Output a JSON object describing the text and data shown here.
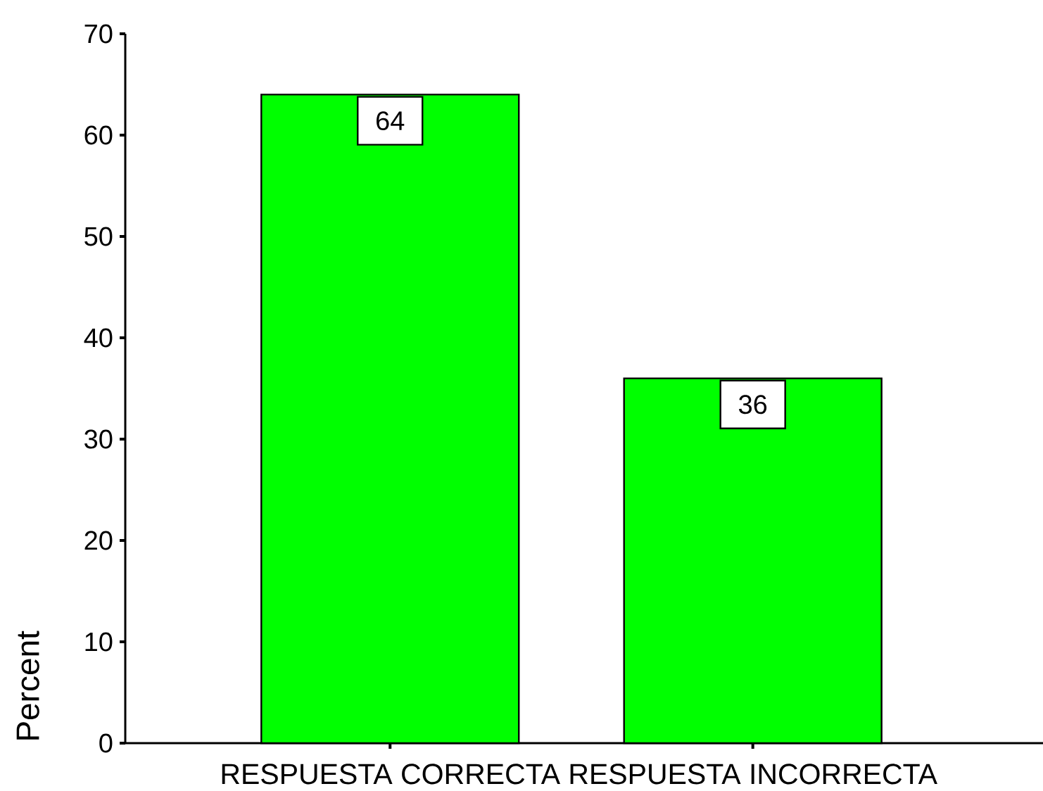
{
  "chart_data": {
    "type": "bar",
    "categories": [
      "RESPUESTA CORRECTA",
      "RESPUESTA INCORRECTA"
    ],
    "values": [
      64,
      36
    ],
    "color": "#00ff00",
    "ylabel": "Percent",
    "ylim": [
      0,
      70
    ],
    "yticks": [
      0,
      10,
      20,
      30,
      40,
      50,
      60,
      70
    ],
    "data_labels": true
  }
}
